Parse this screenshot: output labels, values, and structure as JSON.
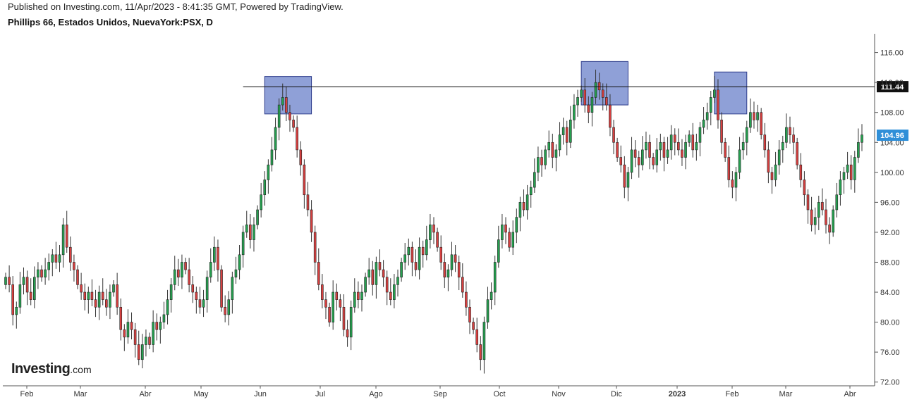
{
  "header": {
    "published": "Published on Investing.com, 11/Apr/2023 - 8:41:35 GMT, Powered by TradingView.",
    "symbol": "Phillips 66, Estados Unidos, NuevaYork:PSX, D"
  },
  "logo": {
    "main": "Investing",
    "suffix": ".com"
  },
  "colors": {
    "up": "#26a050",
    "down": "#d64040",
    "wick": "#333333",
    "box_fill": "#7b8fd0",
    "box_stroke": "#2b3a8a"
  },
  "chart_data": {
    "type": "candlestick",
    "ylim": [
      71.5,
      118.5
    ],
    "y_ticks": [
      "116.00",
      "112.00",
      "108.00",
      "104.00",
      "100.00",
      "96.00",
      "92.00",
      "88.00",
      "84.00",
      "80.00",
      "76.00",
      "72.00"
    ],
    "x_ticks": [
      "Feb",
      "Mar",
      "Abr",
      "May",
      "Jun",
      "Jul",
      "Ago",
      "Sep",
      "Oct",
      "Nov",
      "Dic",
      "2023",
      "Feb",
      "Mar",
      "Abr"
    ],
    "resistance_level": "111.44",
    "last_price": "104.96",
    "highlight_boxes": [
      {
        "from_day": 72,
        "to_day": 85,
        "low": 107.8,
        "high": 112.8
      },
      {
        "from_day": 160,
        "to_day": 173,
        "low": 109.0,
        "high": 114.8
      },
      {
        "from_day": 197,
        "to_day": 206,
        "low": 107.8,
        "high": 113.4
      }
    ],
    "closes": [
      86,
      85,
      81,
      82,
      85,
      86,
      84,
      83,
      86,
      87,
      86,
      87,
      88,
      89,
      88,
      89,
      93,
      90,
      88,
      87,
      85,
      84,
      83,
      84,
      83,
      82,
      84,
      83,
      82,
      84,
      85,
      82,
      79,
      78,
      80,
      79,
      77,
      75,
      77,
      78,
      77,
      80,
      79,
      80,
      81,
      83,
      85,
      87,
      86,
      88,
      87,
      85,
      84,
      83,
      82,
      83,
      86,
      88,
      90,
      87,
      82,
      81,
      83,
      86,
      87,
      89,
      92,
      93,
      91,
      93,
      95,
      97,
      99,
      101,
      103,
      106,
      109,
      110,
      108,
      107,
      106,
      103,
      101,
      97,
      95,
      92,
      88,
      85,
      83,
      82,
      80,
      84,
      83,
      82,
      79,
      78,
      82,
      84,
      83,
      84,
      86,
      87,
      85,
      88,
      87,
      86,
      84,
      83,
      85,
      86,
      88,
      89,
      90,
      88,
      87,
      90,
      89,
      91,
      93,
      92,
      90,
      88,
      86,
      87,
      89,
      88,
      86,
      84,
      82,
      80,
      79,
      77,
      75,
      80,
      83,
      84,
      88,
      91,
      93,
      92,
      90,
      92,
      94,
      96,
      95,
      97,
      98,
      100,
      102,
      101,
      103,
      104,
      102,
      103,
      105,
      106,
      104,
      107,
      109,
      110,
      111,
      109,
      108,
      110,
      112,
      111,
      110,
      109,
      106,
      104,
      102,
      101,
      98,
      100,
      103,
      102,
      101,
      103,
      104,
      102,
      101,
      103,
      104,
      102,
      103,
      105,
      104,
      103,
      102,
      104,
      105,
      103,
      104,
      106,
      107,
      108,
      110,
      111,
      107,
      104,
      102,
      99,
      98,
      100,
      103,
      104,
      106,
      108,
      107,
      108,
      105,
      103,
      100,
      99,
      101,
      103,
      104,
      106,
      105,
      104,
      101,
      99,
      97,
      95,
      93,
      94,
      96,
      95,
      93,
      92,
      95,
      97,
      99,
      100,
      101,
      99,
      102,
      104,
      105
    ]
  }
}
